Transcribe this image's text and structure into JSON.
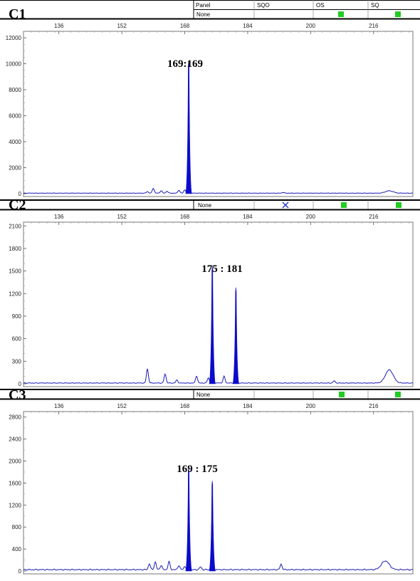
{
  "header": {
    "columns": [
      "Panel",
      "SQO",
      "OS",
      "SQ"
    ],
    "panel_value": "None"
  },
  "panels": [
    {
      "label": "C1",
      "panel_value": "None",
      "sqo_mark": "",
      "os_color": "#22cc22",
      "sq_color": "#22cc22"
    },
    {
      "label": "C2",
      "panel_value": "None",
      "sqo_mark": "x-icon",
      "os_color": "#22cc22",
      "sq_color": "#22cc22"
    },
    {
      "label": "C3",
      "panel_value": "None",
      "sqo_mark": "",
      "os_color": "#22cc22",
      "sq_color": "#22cc22"
    }
  ],
  "colors": {
    "trace": "#1a1ab8",
    "fill": "#0a0ad0",
    "status_ok": "#22cc22",
    "x_mark": "#2a3ad8"
  },
  "chart_data": [
    {
      "type": "line",
      "x_ticks": [
        136,
        152,
        168,
        184,
        200,
        216
      ],
      "xlim": [
        127,
        226
      ],
      "ylim": [
        0,
        12500
      ],
      "y_ticks": [
        0,
        2000,
        4000,
        6000,
        8000,
        10000,
        12000
      ],
      "y_minor_step": 500,
      "annotation": "169:169",
      "peaks": [
        {
          "x": 169,
          "height": 10200
        }
      ],
      "minor_peaks": [
        {
          "x": 158.5,
          "height": 120
        },
        {
          "x": 160,
          "height": 380
        },
        {
          "x": 162,
          "height": 200
        },
        {
          "x": 163.5,
          "height": 150
        },
        {
          "x": 166.5,
          "height": 230
        },
        {
          "x": 168,
          "height": 260
        },
        {
          "x": 193,
          "height": 60
        },
        {
          "x": 220,
          "height": 180
        }
      ],
      "baseline": 40
    },
    {
      "type": "line",
      "x_ticks": [
        136,
        152,
        168,
        184,
        200,
        216
      ],
      "xlim": [
        127,
        226
      ],
      "ylim": [
        0,
        2150
      ],
      "y_ticks": [
        0,
        300,
        600,
        900,
        1200,
        1500,
        1800,
        2100
      ],
      "y_minor_step": 100,
      "annotation": "175 : 181",
      "peaks": [
        {
          "x": 175,
          "height": 1570
        },
        {
          "x": 181,
          "height": 1280
        }
      ],
      "minor_peaks": [
        {
          "x": 158.5,
          "height": 190
        },
        {
          "x": 163,
          "height": 120
        },
        {
          "x": 166,
          "height": 40
        },
        {
          "x": 171,
          "height": 95
        },
        {
          "x": 174,
          "height": 70
        },
        {
          "x": 178,
          "height": 90
        },
        {
          "x": 206,
          "height": 30
        },
        {
          "x": 220,
          "height": 175
        }
      ],
      "baseline": 10
    },
    {
      "type": "line",
      "x_ticks": [
        136,
        152,
        168,
        184,
        200,
        216
      ],
      "xlim": [
        127,
        226
      ],
      "ylim": [
        0,
        2900
      ],
      "y_ticks": [
        0,
        400,
        800,
        1200,
        1600,
        2000,
        2400,
        2800
      ],
      "y_minor_step": 200,
      "annotation": "169 : 175",
      "peaks": [
        {
          "x": 169,
          "height": 1880
        },
        {
          "x": 175,
          "height": 1640
        }
      ],
      "minor_peaks": [
        {
          "x": 159,
          "height": 110
        },
        {
          "x": 160.5,
          "height": 140
        },
        {
          "x": 162,
          "height": 80
        },
        {
          "x": 164,
          "height": 150
        },
        {
          "x": 166.5,
          "height": 80
        },
        {
          "x": 168,
          "height": 60
        },
        {
          "x": 172,
          "height": 50
        },
        {
          "x": 192.5,
          "height": 100
        },
        {
          "x": 219,
          "height": 160
        }
      ],
      "baseline": 25
    }
  ]
}
